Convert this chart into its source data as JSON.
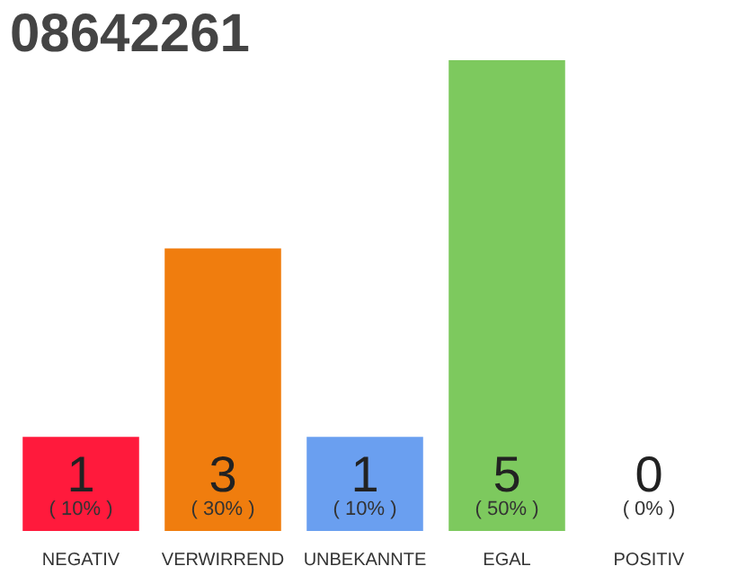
{
  "chart_data": {
    "type": "bar",
    "title": "08642261",
    "categories": [
      "NEGATIV",
      "VERWIRREND",
      "UNBEKANNTE",
      "EGAL",
      "POSITIV"
    ],
    "values": [
      1,
      3,
      1,
      5,
      0
    ],
    "colors": [
      "#ff1a3c",
      "#f07d0e",
      "#6a9ff0",
      "#7dc95e",
      "#d9d9d9"
    ],
    "ylim": [
      0,
      5
    ],
    "tick_labels": "x",
    "grid": false,
    "data_labels": true,
    "annotations": [
      {
        "text": "( 10% )",
        "x": "NEGATIV",
        "y": 0
      },
      {
        "text": "( 30% )",
        "x": "VERWIRREND",
        "y": 0
      },
      {
        "text": "( 10% )",
        "x": "UNBEKANNTE",
        "y": 0
      },
      {
        "text": "( 50% )",
        "x": "EGAL",
        "y": 0
      },
      {
        "text": "( 0% )",
        "x": "POSITIV",
        "y": 0
      }
    ]
  }
}
